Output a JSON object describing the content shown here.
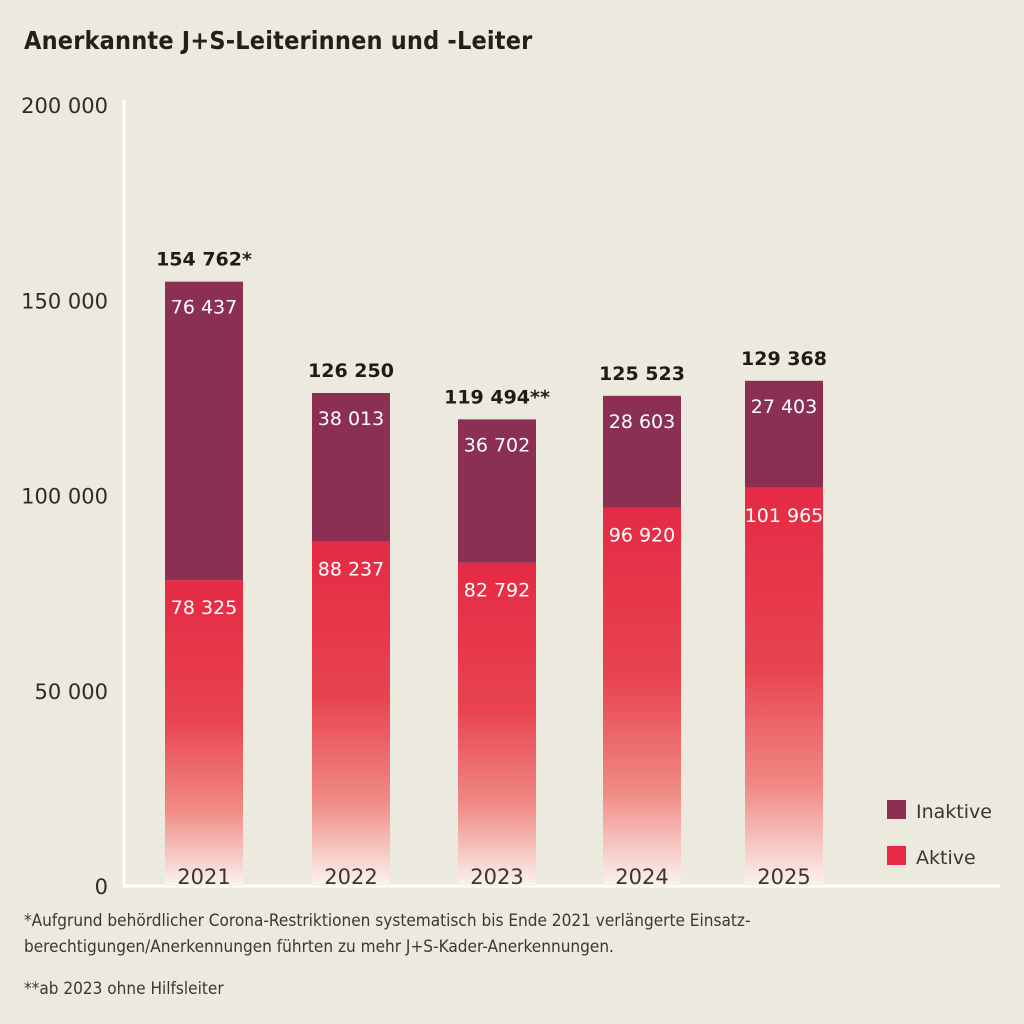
{
  "chart_data": {
    "type": "bar",
    "stacked": true,
    "title": "Anerkannte J+S-Leiterinnen und -Leiter",
    "xlabel": "",
    "ylabel": "",
    "categories": [
      "2021",
      "2022",
      "2023",
      "2024",
      "2025"
    ],
    "series": [
      {
        "name": "Aktive",
        "color": "#e52a45",
        "values": [
          78325,
          88237,
          82792,
          96920,
          101965
        ],
        "labels": [
          "78 325",
          "88 237",
          "82 792",
          "96 920",
          "101 965"
        ]
      },
      {
        "name": "Inaktive",
        "color": "#8b3053",
        "values": [
          76437,
          38013,
          36702,
          28603,
          27403
        ],
        "labels": [
          "76 437",
          "38 013",
          "36 702",
          "28 603",
          "27 403"
        ]
      }
    ],
    "totals": [
      154762,
      126250,
      119494,
      125523,
      129368
    ],
    "total_labels": [
      "154 762*",
      "126 250",
      "119 494**",
      "125 523",
      "129 368"
    ],
    "ylim": [
      0,
      200000
    ],
    "yticks": [
      0,
      50000,
      100000,
      150000,
      200000
    ],
    "ytick_labels": [
      "0",
      "50 000",
      "100 000",
      "150 000",
      "200 000"
    ],
    "grid": false,
    "legend": {
      "position": "bottom-right",
      "entries": [
        "Inaktive",
        "Aktive"
      ]
    }
  },
  "footnotes": [
    "*Aufgrund behördlicher Corona-Restriktionen systematisch bis Ende 2021 verlängerte Einsatz-berechtigungen/Anerkennungen führten zu mehr J+S-Kader-Anerkennungen.",
    "**ab 2023 ohne Hilfsleiter"
  ],
  "footnote_lines": [
    "*Aufgrund behördlicher Corona-Restriktionen systematisch bis Ende 2021 verlängerte Einsatz-",
    "berechtigungen/Anerkennungen führten zu mehr J+S-Kader-Anerkennungen."
  ]
}
